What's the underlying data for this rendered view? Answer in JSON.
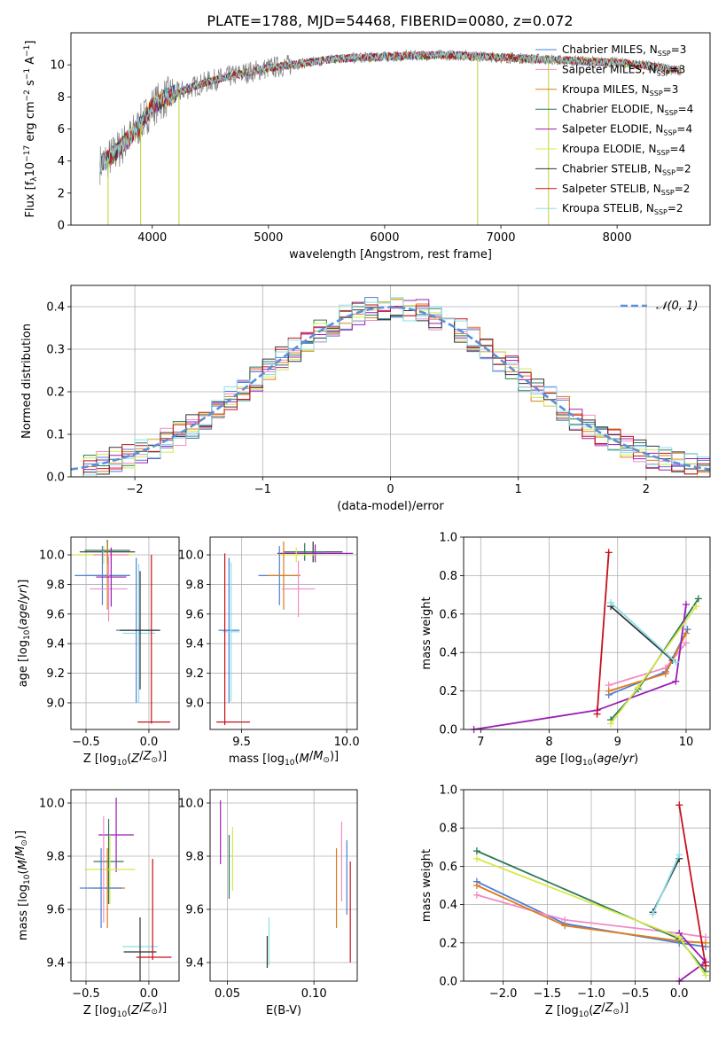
{
  "figure": {
    "title": "PLATE=1788, MJD=54468, FIBERID=0080, z=0.072"
  },
  "chart_data": [
    {
      "id": "spectrum",
      "type": "line",
      "xlabel": "wavelength [Angstrom, rest frame]",
      "ylabel": "Flux [f",
      "xlim": [
        3300,
        8800
      ],
      "ylim": [
        0,
        12
      ],
      "xticks": [
        4000,
        5000,
        6000,
        7000,
        8000
      ],
      "yticks": [
        0,
        2,
        4,
        6,
        8,
        10
      ],
      "grid": false,
      "legend_position": "right",
      "legend": [
        {
          "label": "Chabrier MILES, N",
          "nssp": "=3",
          "color": "#4a7fd9"
        },
        {
          "label": "Salpeter MILES, N",
          "nssp": "=3",
          "color": "#f08cc8"
        },
        {
          "label": "Kroupa MILES, N",
          "nssp": "=3",
          "color": "#e07b1a"
        },
        {
          "label": "Chabrier ELODIE, N",
          "nssp": "=4",
          "color": "#2a7a58"
        },
        {
          "label": "Salpeter ELODIE, N",
          "nssp": "=4",
          "color": "#9a1fb5"
        },
        {
          "label": "Kroupa ELODIE, N",
          "nssp": "=4",
          "color": "#d7e84a"
        },
        {
          "label": "Chabrier STELIB, N",
          "nssp": "=2",
          "color": "#333333"
        },
        {
          "label": "Salpeter STELIB, N",
          "nssp": "=2",
          "color": "#c8101a"
        },
        {
          "label": "Kroupa STELIB, N",
          "nssp": "=2",
          "color": "#8ae0e8"
        }
      ],
      "data_color": "#7f7f7f",
      "model_envelope": {
        "x": [
          3550,
          3650,
          3800,
          3900,
          4000,
          4100,
          4300,
          4500,
          4800,
          5000,
          5300,
          5600,
          6000,
          6300,
          6600,
          6900,
          7200,
          7500,
          7800,
          8100,
          8400,
          8550
        ],
        "y": [
          3.8,
          4.3,
          5.4,
          6.3,
          7.4,
          7.9,
          8.5,
          9.0,
          9.5,
          9.8,
          10.1,
          10.4,
          10.5,
          10.6,
          10.6,
          10.5,
          10.4,
          10.3,
          10.2,
          10.1,
          9.8,
          9.6
        ]
      }
    },
    {
      "id": "residual_histogram",
      "type": "histogram",
      "xlabel": "(data-model)/error",
      "ylabel": "Normed distribution",
      "xlim": [
        -2.5,
        2.5
      ],
      "ylim": [
        0,
        0.45
      ],
      "xticks": [
        -2,
        -1,
        0,
        1,
        2
      ],
      "yticks": [
        0.0,
        0.1,
        0.2,
        0.3,
        0.4
      ],
      "grid": true,
      "legend_position": "top-right",
      "legend": [
        {
          "label": "𝒩(0, 1)",
          "color": "#5b8fd6",
          "style": "dashed"
        }
      ],
      "bin_edges_start": -2.5,
      "bin_width": 0.1,
      "reference_curve": "normal(0,1)"
    },
    {
      "id": "age_vs_Z",
      "type": "errorbar",
      "xlabel": "Z [log",
      "ylabel": "age  [log",
      "xlim": [
        -0.62,
        0.24
      ],
      "ylim": [
        8.82,
        10.12
      ],
      "xticks": [
        -0.5,
        0.0
      ],
      "yticks": [
        9.0,
        9.2,
        9.4,
        9.6,
        9.8,
        10.0
      ],
      "grid": true,
      "points": [
        {
          "x": -0.33,
          "y": 10.02,
          "xe": 0.22,
          "ye": 0.08,
          "color": "#333333"
        },
        {
          "x": -0.36,
          "y": 10.0,
          "xe": 0.24,
          "ye": 0.06,
          "color": "#d7e84a"
        },
        {
          "x": -0.33,
          "y": 10.03,
          "xe": 0.18,
          "ye": 0.06,
          "color": "#2a7a58"
        },
        {
          "x": -0.3,
          "y": 10.0,
          "xe": 0.14,
          "ye": 0.04,
          "color": "#f08cc8"
        },
        {
          "x": -0.33,
          "y": 9.86,
          "xe": 0.18,
          "ye": 0.23,
          "color": "#e07b1a"
        },
        {
          "x": -0.37,
          "y": 9.86,
          "xe": 0.22,
          "ye": 0.2,
          "color": "#4a7fd9"
        },
        {
          "x": -0.32,
          "y": 9.77,
          "xe": 0.15,
          "ye": 0.22,
          "color": "#f08cc8"
        },
        {
          "x": -0.3,
          "y": 9.85,
          "xe": 0.12,
          "ye": 0.2,
          "color": "#9a1fb5"
        },
        {
          "x": -0.1,
          "y": 9.49,
          "xe": 0.16,
          "ye": 0.49,
          "color": "#4a7fd9"
        },
        {
          "x": -0.08,
          "y": 9.47,
          "xe": 0.13,
          "ye": 0.47,
          "color": "#8ae0e8"
        },
        {
          "x": -0.07,
          "y": 9.49,
          "xe": 0.16,
          "ye": 0.4,
          "color": "#333333"
        },
        {
          "x": 0.04,
          "y": 8.87,
          "xe": 0.13,
          "ye": 0.0,
          "color": "#c8101a"
        },
        {
          "x": 0.02,
          "y": 9.43,
          "xe": 0.0,
          "ye": 0.57,
          "color": "#c8101a"
        }
      ]
    },
    {
      "id": "age_vs_mass",
      "type": "errorbar",
      "xlabel": "mass [log",
      "ylabel": "",
      "xlim": [
        9.35,
        10.05
      ],
      "ylim": [
        8.82,
        10.12
      ],
      "xticks": [
        9.5,
        10.0
      ],
      "yticks": [
        9.0,
        9.2,
        9.4,
        9.6,
        9.8,
        10.0
      ],
      "grid": true,
      "points": [
        {
          "x": 9.84,
          "y": 10.02,
          "xe": 0.14,
          "ye": 0.07,
          "color": "#333333"
        },
        {
          "x": 9.85,
          "y": 10.01,
          "xe": 0.18,
          "ye": 0.06,
          "color": "#9a1fb5"
        },
        {
          "x": 9.8,
          "y": 10.02,
          "xe": 0.1,
          "ye": 0.06,
          "color": "#2a7a58"
        },
        {
          "x": 9.76,
          "y": 10.0,
          "xe": 0.09,
          "ye": 0.05,
          "color": "#d7e84a"
        },
        {
          "x": 9.68,
          "y": 9.86,
          "xe": 0.1,
          "ye": 0.2,
          "color": "#4a7fd9"
        },
        {
          "x": 9.7,
          "y": 9.86,
          "xe": 0.08,
          "ye": 0.23,
          "color": "#e07b1a"
        },
        {
          "x": 9.77,
          "y": 9.77,
          "xe": 0.08,
          "ye": 0.19,
          "color": "#f08cc8"
        },
        {
          "x": 9.44,
          "y": 9.49,
          "xe": 0.05,
          "ye": 0.49,
          "color": "#4a7fd9"
        },
        {
          "x": 9.45,
          "y": 9.48,
          "xe": 0.04,
          "ye": 0.47,
          "color": "#8ae0e8"
        },
        {
          "x": 9.42,
          "y": 9.43,
          "xe": 0.0,
          "ye": 0.58,
          "color": "#c8101a"
        },
        {
          "x": 9.46,
          "y": 8.87,
          "xe": 0.08,
          "ye": 0.0,
          "color": "#c8101a"
        }
      ]
    },
    {
      "id": "weight_vs_age",
      "type": "line",
      "xlabel": "age  [log",
      "ylabel": "mass weight",
      "xlim": [
        6.75,
        10.35
      ],
      "ylim": [
        0,
        1.0
      ],
      "xticks": [
        7,
        8,
        9,
        10
      ],
      "yticks": [
        0.0,
        0.2,
        0.4,
        0.6,
        0.8,
        1.0
      ],
      "grid": true,
      "series": [
        {
          "color": "#4a7fd9",
          "x": [
            8.87,
            9.7,
            10.02
          ],
          "y": [
            0.18,
            0.3,
            0.52
          ]
        },
        {
          "color": "#f08cc8",
          "x": [
            8.87,
            9.7,
            10.0
          ],
          "y": [
            0.23,
            0.32,
            0.45
          ]
        },
        {
          "color": "#e07b1a",
          "x": [
            8.87,
            9.7,
            10.0
          ],
          "y": [
            0.2,
            0.29,
            0.5
          ]
        },
        {
          "color": "#2a7a58",
          "x": [
            8.9,
            9.3,
            10.18
          ],
          "y": [
            0.05,
            0.21,
            0.68
          ]
        },
        {
          "color": "#9a1fb5",
          "x": [
            6.9,
            8.7,
            9.85,
            10.0
          ],
          "y": [
            0.0,
            0.1,
            0.25,
            0.65
          ]
        },
        {
          "color": "#d7e84a",
          "x": [
            8.9,
            9.3,
            10.15
          ],
          "y": [
            0.03,
            0.22,
            0.64
          ]
        },
        {
          "color": "#333333",
          "x": [
            8.9,
            9.8
          ],
          "y": [
            0.64,
            0.36
          ]
        },
        {
          "color": "#c8101a",
          "x": [
            8.7,
            8.87
          ],
          "y": [
            0.08,
            0.92
          ]
        },
        {
          "color": "#8ae0e8",
          "x": [
            8.9,
            9.85
          ],
          "y": [
            0.66,
            0.35
          ]
        }
      ]
    },
    {
      "id": "mass_vs_Z",
      "type": "errorbar",
      "xlabel": "Z [log",
      "ylabel": "mass [log",
      "xlim": [
        -0.62,
        0.24
      ],
      "ylim": [
        9.33,
        10.05
      ],
      "xticks": [
        -0.5,
        0.0
      ],
      "yticks": [
        9.4,
        9.6,
        9.8,
        10.0
      ],
      "grid": true,
      "points": [
        {
          "x": -0.26,
          "y": 9.88,
          "xe": 0.14,
          "ye": 0.14,
          "color": "#9a1fb5"
        },
        {
          "x": -0.32,
          "y": 9.78,
          "xe": 0.12,
          "ye": 0.16,
          "color": "#2a7a58"
        },
        {
          "x": -0.31,
          "y": 9.75,
          "xe": 0.2,
          "ye": 0.13,
          "color": "#d7e84a"
        },
        {
          "x": -0.33,
          "y": 9.68,
          "xe": 0.14,
          "ye": 0.15,
          "color": "#e07b1a"
        },
        {
          "x": -0.38,
          "y": 9.68,
          "xe": 0.17,
          "ye": 0.15,
          "color": "#4a7fd9"
        },
        {
          "x": -0.36,
          "y": 9.75,
          "xe": 0.0,
          "ye": 0.2,
          "color": "#f08cc8"
        },
        {
          "x": -0.07,
          "y": 9.46,
          "xe": 0.14,
          "ye": 0.0,
          "color": "#8ae0e8"
        },
        {
          "x": -0.07,
          "y": 9.44,
          "xe": 0.13,
          "ye": 0.13,
          "color": "#333333"
        },
        {
          "x": 0.04,
          "y": 9.42,
          "xe": 0.14,
          "ye": 0.0,
          "color": "#c8101a"
        },
        {
          "x": 0.03,
          "y": 9.6,
          "xe": 0.0,
          "ye": 0.19,
          "color": "#c8101a"
        }
      ]
    },
    {
      "id": "mass_vs_ebv",
      "type": "errorbar",
      "xlabel": "E(B-V)",
      "ylabel": "",
      "xlim": [
        0.04,
        0.125
      ],
      "ylim": [
        9.33,
        10.05
      ],
      "xticks": [
        0.05,
        0.1
      ],
      "xtick_labels": [
        "0.05",
        "0.10"
      ],
      "yticks": [
        9.4,
        9.6,
        9.8,
        10.0
      ],
      "grid": true,
      "points": [
        {
          "x": 0.046,
          "y": 9.89,
          "ye": 0.12,
          "color": "#9a1fb5"
        },
        {
          "x": 0.051,
          "y": 9.76,
          "ye": 0.12,
          "color": "#2a7a58"
        },
        {
          "x": 0.053,
          "y": 9.79,
          "ye": 0.12,
          "color": "#d7e84a"
        },
        {
          "x": 0.074,
          "y": 9.48,
          "ye": 0.09,
          "color": "#8ae0e8"
        },
        {
          "x": 0.073,
          "y": 9.44,
          "ye": 0.06,
          "color": "#333333"
        },
        {
          "x": 0.113,
          "y": 9.68,
          "ye": 0.15,
          "color": "#e07b1a"
        },
        {
          "x": 0.116,
          "y": 9.78,
          "ye": 0.15,
          "color": "#f08cc8"
        },
        {
          "x": 0.119,
          "y": 9.72,
          "ye": 0.14,
          "color": "#4a7fd9"
        },
        {
          "x": 0.121,
          "y": 9.59,
          "ye": 0.19,
          "color": "#c8101a"
        }
      ]
    },
    {
      "id": "weight_vs_Z",
      "type": "line",
      "xlabel": "Z [log",
      "ylabel": "mass weight",
      "xlim": [
        -2.45,
        0.35
      ],
      "ylim": [
        0,
        1.0
      ],
      "xticks": [
        -2.0,
        -1.5,
        -1.0,
        -0.5,
        0.0
      ],
      "yticks": [
        0.0,
        0.2,
        0.4,
        0.6,
        0.8,
        1.0
      ],
      "grid": true,
      "series": [
        {
          "color": "#4a7fd9",
          "x": [
            -2.3,
            -1.3,
            0.0,
            0.3
          ],
          "y": [
            0.52,
            0.3,
            0.2,
            0.18
          ]
        },
        {
          "color": "#f08cc8",
          "x": [
            -2.3,
            -1.3,
            0.0,
            0.3
          ],
          "y": [
            0.45,
            0.32,
            0.25,
            0.23
          ]
        },
        {
          "color": "#e07b1a",
          "x": [
            -2.3,
            -1.3,
            0.0,
            0.3
          ],
          "y": [
            0.5,
            0.29,
            0.21,
            0.2
          ]
        },
        {
          "color": "#2a7a58",
          "x": [
            -2.3,
            0.0,
            0.3
          ],
          "y": [
            0.68,
            0.22,
            0.05
          ]
        },
        {
          "color": "#9a1fb5",
          "x": [
            0.0,
            0.3,
            0.0
          ],
          "y": [
            0.0,
            0.1,
            0.25
          ]
        },
        {
          "color": "#d7e84a",
          "x": [
            -2.3,
            0.0,
            0.3
          ],
          "y": [
            0.64,
            0.23,
            0.03
          ]
        },
        {
          "color": "#333333",
          "x": [
            -0.3,
            0.0
          ],
          "y": [
            0.36,
            0.64
          ]
        },
        {
          "color": "#c8101a",
          "x": [
            0.0,
            0.3
          ],
          "y": [
            0.92,
            0.08
          ]
        },
        {
          "color": "#8ae0e8",
          "x": [
            -0.3,
            0.0
          ],
          "y": [
            0.35,
            0.66
          ]
        }
      ]
    }
  ]
}
